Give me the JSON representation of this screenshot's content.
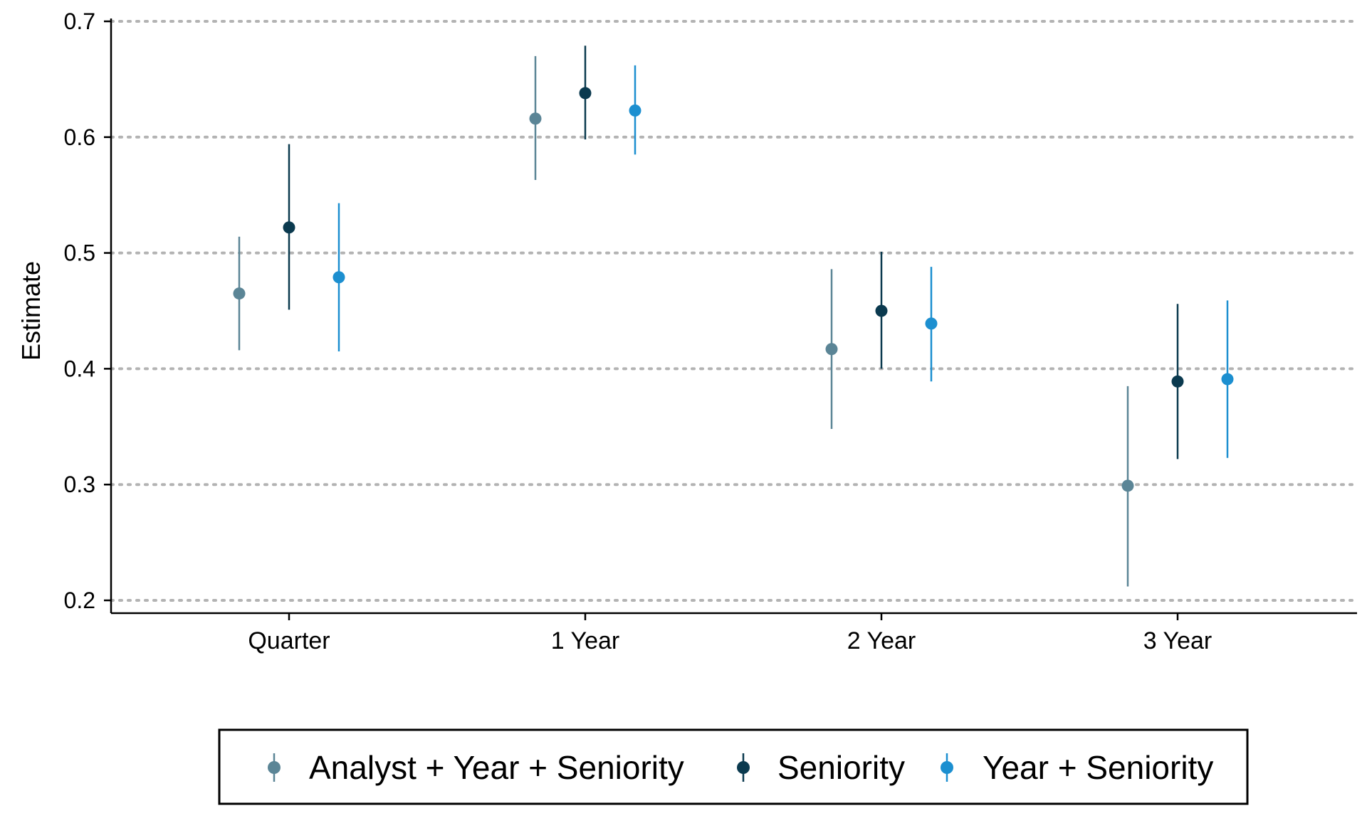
{
  "chart_data": {
    "type": "scatter",
    "title": "",
    "xlabel": "",
    "ylabel": "Estimate",
    "categories": [
      "Quarter",
      "1 Year",
      "2 Year",
      "3 Year"
    ],
    "ylim": [
      0.2,
      0.7
    ],
    "yticks": [
      0.2,
      0.3,
      0.4,
      0.5,
      0.6,
      0.7
    ],
    "ytick_labels": [
      "0.2",
      "0.3",
      "0.4",
      "0.5",
      "0.6",
      "0.7"
    ],
    "grid": "horizontal dotted",
    "legend_position": "bottom",
    "series": [
      {
        "name": "Analyst + Year + Seniority",
        "color": "#5b8596",
        "estimates": [
          0.465,
          0.616,
          0.417,
          0.299
        ],
        "lower": [
          0.416,
          0.563,
          0.348,
          0.212
        ],
        "upper": [
          0.514,
          0.67,
          0.486,
          0.385
        ]
      },
      {
        "name": "Seniority",
        "color": "#0b3a4f",
        "estimates": [
          0.522,
          0.638,
          0.45,
          0.389
        ],
        "lower": [
          0.451,
          0.598,
          0.4,
          0.322
        ],
        "upper": [
          0.594,
          0.679,
          0.501,
          0.456
        ]
      },
      {
        "name": "Year + Seniority",
        "color": "#1c8fd0",
        "estimates": [
          0.479,
          0.623,
          0.439,
          0.391
        ],
        "lower": [
          0.415,
          0.585,
          0.389,
          0.323
        ],
        "upper": [
          0.543,
          0.662,
          0.488,
          0.459
        ]
      }
    ]
  },
  "colors": {
    "axis": "#000000",
    "grid": "#b3b3b3",
    "background": "#ffffff"
  }
}
